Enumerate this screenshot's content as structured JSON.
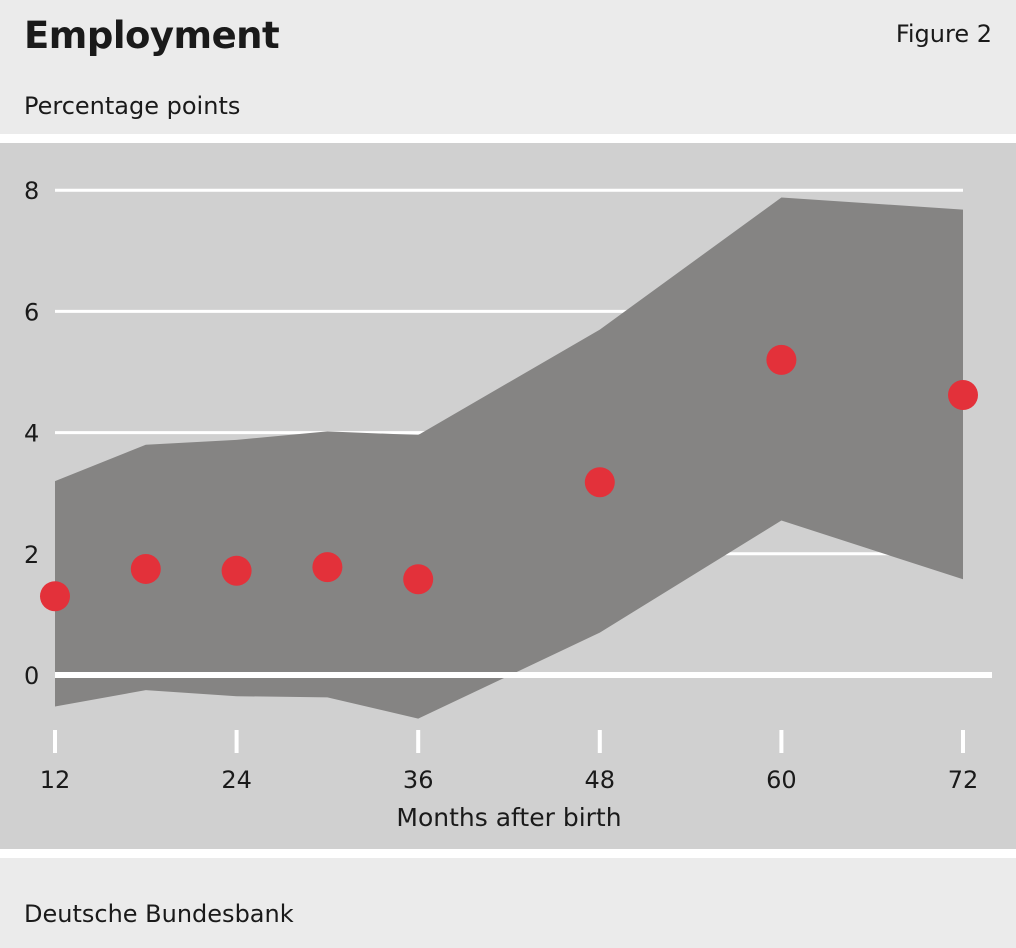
{
  "header": {
    "title": "Employment",
    "figure_label": "Figure 2",
    "subtitle": "Percentage points"
  },
  "footer": {
    "source": "Deutsche Bundesbank"
  },
  "colors": {
    "band": "#858483",
    "points": "#e3313a",
    "gridlines": "#ffffff",
    "plot_background": "#d0d0d0",
    "page_background": "#ebebeb"
  },
  "chart_data": {
    "type": "scatter",
    "title": "Employment",
    "subtitle": "Percentage points",
    "xlabel": "Months after birth",
    "ylabel": "",
    "x_ticks": [
      12,
      24,
      36,
      48,
      60,
      72
    ],
    "y_ticks": [
      0,
      2,
      4,
      6,
      8
    ],
    "xlim": [
      12,
      72
    ],
    "ylim": [
      -0.9,
      8.3
    ],
    "grid": true,
    "series": [
      {
        "kind": "points",
        "x": [
          12,
          18,
          24,
          30,
          36,
          48,
          60,
          72
        ],
        "y": [
          1.3,
          1.75,
          1.72,
          1.78,
          1.58,
          3.18,
          5.2,
          4.62
        ]
      },
      {
        "kind": "confidence-band",
        "x": [
          12,
          18,
          24,
          30,
          36,
          48,
          60,
          72
        ],
        "upper": [
          3.2,
          3.8,
          3.88,
          4.02,
          3.96,
          5.7,
          7.88,
          7.68
        ],
        "lower": [
          -0.52,
          -0.25,
          -0.35,
          -0.37,
          -0.72,
          0.7,
          2.55,
          1.58
        ]
      }
    ]
  }
}
